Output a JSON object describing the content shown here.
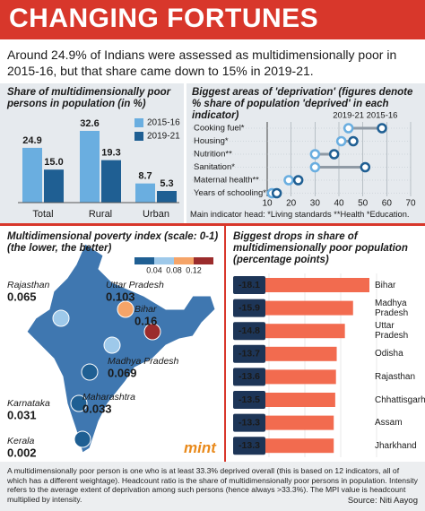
{
  "header": {
    "title": "CHANGING FORTUNES",
    "intro": "Around 24.9% of Indians were assessed as multidimensionally poor in 2015-16, but that share came down to 15% in 2019-21."
  },
  "chart_data": [
    {
      "type": "bar",
      "title": "Share of multidimensionally poor persons in population (in %)",
      "categories": [
        "Total",
        "Rural",
        "Urban"
      ],
      "series": [
        {
          "name": "2015-16",
          "color": "#6aaee0",
          "values": [
            24.9,
            32.6,
            8.7
          ]
        },
        {
          "name": "2019-21",
          "color": "#1f5f93",
          "values": [
            15,
            19.3,
            5.3
          ],
          "value_labels": [
            "15.0",
            "19.3",
            "5.3"
          ]
        }
      ],
      "legend": "top-right"
    },
    {
      "type": "dumbbell",
      "title": "Biggest areas of 'deprivation' (figures denote % share of population 'deprived' in each indicator)",
      "categories": [
        "Cooking fuel*",
        "Housing*",
        "Nutrition**",
        "Sanitation*",
        "Maternal health**",
        "Years of schooling*"
      ],
      "series": [
        {
          "name": "2019-21",
          "color": "#6aaee0",
          "values": [
            44,
            41,
            30,
            30,
            19,
            12
          ]
        },
        {
          "name": "2015-16",
          "color": "#1f5f93",
          "values": [
            58,
            46,
            38,
            51,
            23,
            14
          ]
        }
      ],
      "xlim": [
        10,
        70
      ],
      "xticks": [
        10,
        20,
        30,
        40,
        50,
        60,
        70
      ],
      "grid": true,
      "note": "Main indicator head: *Living standards **Health *Education."
    },
    {
      "type": "map",
      "title": "Multidimensional poverty index (scale: 0-1)",
      "subtitle": "(the lower, the better)",
      "colorbar": {
        "ticks": [
          0.04,
          0.08,
          0.12
        ],
        "colors": [
          "#1f5f93",
          "#9ec9ea",
          "#f5a468",
          "#9b2c2c"
        ]
      },
      "regions": [
        {
          "name": "Rajasthan",
          "value": 0.065
        },
        {
          "name": "Uttar Pradesh",
          "value": 0.103
        },
        {
          "name": "Bihar",
          "value": 0.16
        },
        {
          "name": "Madhya Pradesh",
          "value": 0.069
        },
        {
          "name": "Karnataka",
          "value": 0.031
        },
        {
          "name": "Maharashtra",
          "value": 0.033
        },
        {
          "name": "Kerala",
          "value": 0.002
        }
      ]
    },
    {
      "type": "barh",
      "title": "Biggest drops in share of multidimensionally poor population (percentage points)",
      "categories": [
        "Bihar",
        "Madhya Pradesh",
        "Uttar Pradesh",
        "Odisha",
        "Rajasthan",
        "Chhattisgarh",
        "Assam",
        "Jharkhand"
      ],
      "values": [
        -18.1,
        -15.9,
        -14.8,
        -13.7,
        -13.6,
        -13.5,
        -13.3,
        -13.3
      ],
      "color": "#f26b4f",
      "label_color": "#1d3557"
    }
  ],
  "footer": {
    "note": "A multidimensionally poor person is one who is at least 33.3% deprived overall (this is based on 12 indicators, all of which has a different weightage). Headcount ratio is the share of multidimensionally poor persons in population. Intensity refers to the average extent of deprivation among such persons (hence always >33.3%). The MPI value is headcount multiplied by intensity.",
    "source": "Source: Niti Aayog",
    "logo": "mint"
  }
}
